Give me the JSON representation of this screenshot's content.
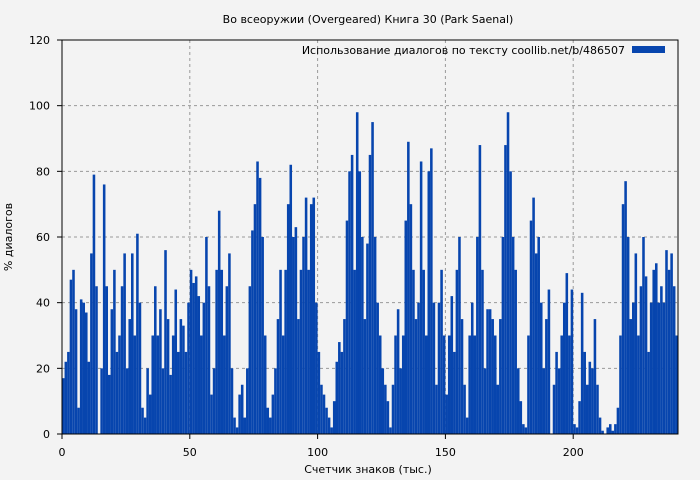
{
  "chart_data": {
    "type": "bar",
    "title": "Во всеоружии (Overgeared) Книга 30 (Park Saenal)",
    "xlabel": "Счетчик знаков (тыс.)",
    "ylabel": "% диалогов",
    "xlim": [
      0,
      241
    ],
    "ylim": [
      0,
      120
    ],
    "xticks": [
      0,
      50,
      100,
      150,
      200
    ],
    "yticks": [
      0,
      20,
      40,
      60,
      80,
      100,
      120
    ],
    "grid": true,
    "legend": {
      "label": "Использование диалогов по тексту  coollib.net/b/486507",
      "placement": "top-right"
    },
    "colors": {
      "bar": "#0745ae",
      "background": "#f3f3f3",
      "grid": "#999999"
    },
    "x_start": 0,
    "x_step": 1,
    "values": [
      17,
      22,
      25,
      47,
      50,
      38,
      8,
      41,
      40,
      37,
      22,
      55,
      79,
      45,
      0,
      20,
      76,
      45,
      18,
      38,
      50,
      25,
      30,
      45,
      55,
      20,
      35,
      55,
      30,
      61,
      40,
      8,
      5,
      20,
      12,
      30,
      45,
      30,
      38,
      20,
      56,
      35,
      18,
      30,
      44,
      25,
      35,
      33,
      25,
      40,
      50,
      46,
      48,
      42,
      30,
      40,
      60,
      45,
      12,
      20,
      50,
      68,
      50,
      30,
      45,
      55,
      20,
      5,
      2,
      12,
      15,
      5,
      20,
      45,
      62,
      70,
      83,
      78,
      60,
      30,
      8,
      5,
      12,
      20,
      35,
      50,
      30,
      50,
      70,
      82,
      60,
      63,
      35,
      50,
      60,
      72,
      50,
      70,
      72,
      40,
      25,
      15,
      12,
      8,
      5,
      2,
      10,
      22,
      28,
      25,
      35,
      65,
      80,
      85,
      50,
      98,
      80,
      60,
      35,
      58,
      85,
      95,
      60,
      40,
      30,
      20,
      15,
      10,
      2,
      15,
      30,
      38,
      20,
      30,
      65,
      89,
      70,
      50,
      35,
      40,
      83,
      50,
      30,
      80,
      87,
      40,
      15,
      40,
      50,
      30,
      12,
      30,
      42,
      25,
      50,
      60,
      35,
      15,
      5,
      30,
      40,
      30,
      60,
      88,
      50,
      20,
      38,
      38,
      35,
      30,
      15,
      35,
      60,
      88,
      98,
      80,
      60,
      50,
      20,
      10,
      3,
      2,
      30,
      65,
      72,
      55,
      60,
      40,
      20,
      35,
      44,
      0,
      15,
      25,
      20,
      30,
      40,
      49,
      30,
      44,
      3,
      2,
      10,
      43,
      25,
      15,
      22,
      20,
      35,
      15,
      5,
      1,
      0,
      2,
      3,
      1,
      3,
      8,
      30,
      70,
      77,
      60,
      35,
      40,
      55,
      30,
      45,
      60,
      48,
      25,
      40,
      50,
      52,
      40,
      45,
      40,
      56,
      50,
      55,
      45,
      30
    ]
  }
}
